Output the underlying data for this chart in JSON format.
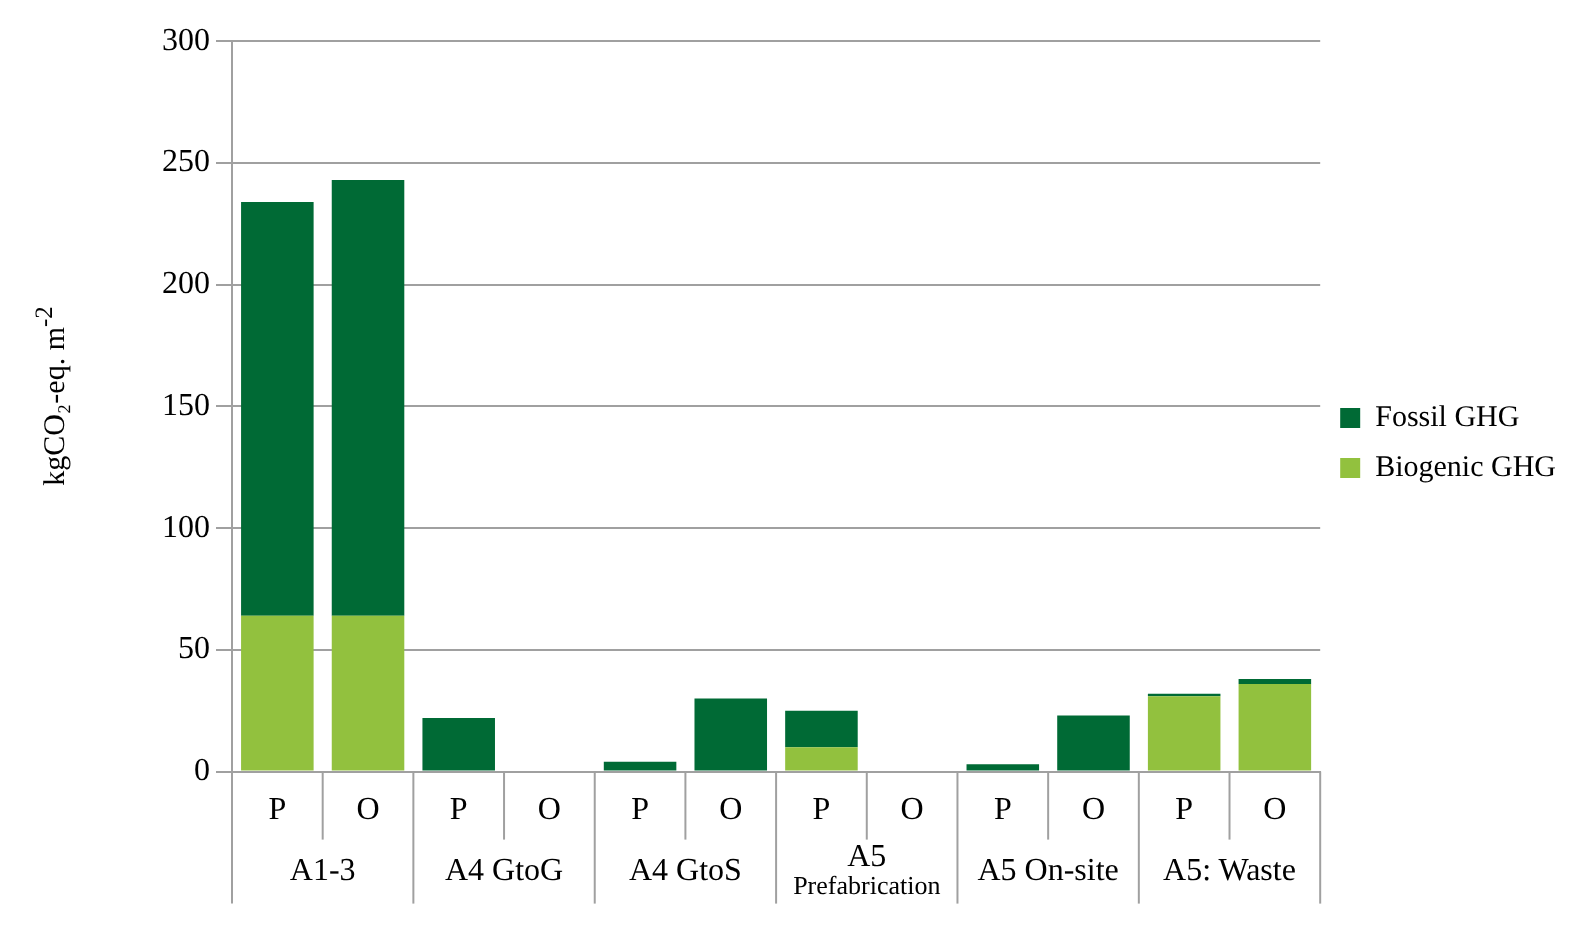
{
  "chart_data": {
    "type": "bar",
    "stacked": true,
    "ylabel": "kgCO₂-eq. m$^{-2}$",
    "categories": [
      "P",
      "O",
      "P",
      "O",
      "P",
      "O",
      "P",
      "O",
      "P",
      "O",
      "P",
      "O"
    ],
    "annotations": [
      "A1-3",
      "A4 GtoG",
      "A4 GtoS",
      "A5 Prefabrication",
      "A5 On-site",
      "A5: Waste"
    ],
    "series": [
      {
        "name": "Biogenic GHG",
        "color": "#92c13e",
        "values": [
          64,
          64,
          0,
          0,
          0,
          0,
          10,
          0,
          0,
          0,
          31,
          36
        ]
      },
      {
        "name": "Fossil GHG",
        "color": "#006a35",
        "values": [
          170,
          179,
          22,
          0,
          4,
          30,
          15,
          0,
          3,
          23,
          1,
          2
        ]
      }
    ],
    "ylim": [
      0,
      300
    ],
    "yticks": [
      0,
      50,
      100,
      150,
      200,
      250,
      300
    ],
    "grid": "y",
    "legend": "right"
  }
}
